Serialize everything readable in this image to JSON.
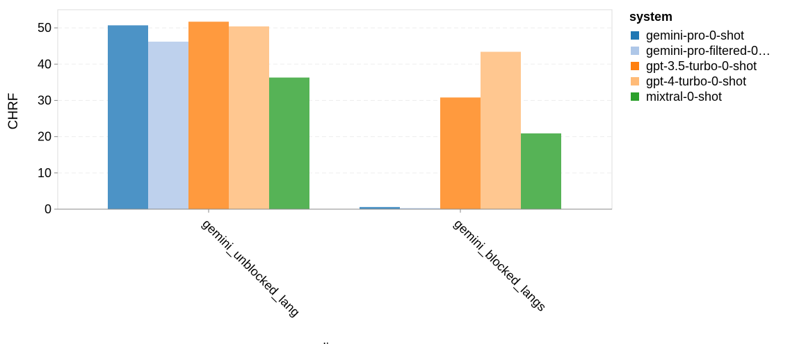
{
  "chart_data": {
    "type": "bar",
    "xlabel": "slice",
    "ylabel": "CHRF",
    "ylim": [
      0,
      55
    ],
    "yticks": [
      0,
      10,
      20,
      30,
      40,
      50
    ],
    "grid": true,
    "categories": [
      "gemini_unblocked_lang",
      "gemini_blocked_langs"
    ],
    "legend": {
      "title": "system",
      "placement": "right",
      "labels": [
        "gemini-pro-0-shot",
        "gemini-pro-filtered-0…",
        "gpt-3.5-turbo-0-shot",
        "gpt-4-turbo-0-shot",
        "mixtral-0-shot"
      ]
    },
    "series": [
      {
        "name": "gemini-pro-0-shot",
        "color": "#4c93c6",
        "legend_color": "#1f77b4",
        "values": [
          50.7,
          0.6
        ]
      },
      {
        "name": "gemini-pro-filtered-0-shot",
        "color": "#bed1ed",
        "legend_color": "#aec7e8",
        "values": [
          46.2,
          0.3
        ]
      },
      {
        "name": "gpt-3.5-turbo-0-shot",
        "color": "#ff9a3e",
        "legend_color": "#ff7f0e",
        "values": [
          51.7,
          30.8
        ]
      },
      {
        "name": "gpt-4-turbo-0-shot",
        "color": "#ffc790",
        "legend_color": "#ffbb78",
        "values": [
          50.4,
          43.4
        ]
      },
      {
        "name": "mixtral-0-shot",
        "color": "#56b356",
        "legend_color": "#2ca02c",
        "values": [
          36.3,
          20.9
        ]
      }
    ]
  }
}
